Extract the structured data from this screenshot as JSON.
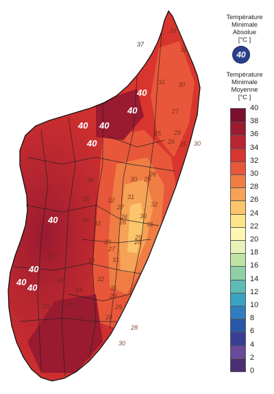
{
  "legend": {
    "absolute_title": [
      "Température",
      "Minimale",
      "Absolue",
      "[°C ]"
    ],
    "absolute_badge_value": "40",
    "mean_title": [
      "Température",
      "Minimale",
      "Moyenne",
      "[°C ]"
    ],
    "ticks": [
      "40",
      "38",
      "36",
      "34",
      "32",
      "30",
      "28",
      "26",
      "24",
      "22",
      "20",
      "18",
      "16",
      "14",
      "12",
      "10",
      "8",
      "6",
      "4",
      "2",
      "0"
    ],
    "colors": [
      "#7a0f2e",
      "#9a1a30",
      "#b82432",
      "#d8352e",
      "#e8573a",
      "#f07d44",
      "#f6a257",
      "#fbc56c",
      "#fde48a",
      "#fef7b4",
      "#e6f3b8",
      "#bfe3a4",
      "#8fd0a8",
      "#5fbcb4",
      "#3aa2c2",
      "#2f7fc0",
      "#2a58a8",
      "#3a3f96",
      "#6a4a9a",
      "#4a3072",
      "#1e2058"
    ],
    "colors_note_hex": true
  },
  "map": {
    "absolute_labels": [
      "40",
      "40",
      "40",
      "40",
      "40",
      "40",
      "40",
      "40",
      "40",
      "37"
    ],
    "mean_labels": [
      "33",
      "32",
      "31",
      "30",
      "29",
      "27",
      "25",
      "26",
      "30",
      "36",
      "35",
      "34",
      "33",
      "32",
      "31",
      "30",
      "29",
      "28",
      "27",
      "26",
      "25",
      "33",
      "32",
      "31",
      "30",
      "29",
      "28",
      "27",
      "26",
      "34",
      "33",
      "32",
      "31",
      "29",
      "28",
      "37",
      "36",
      "35",
      "34",
      "33",
      "32",
      "31",
      "30",
      "29",
      "28"
    ]
  }
}
